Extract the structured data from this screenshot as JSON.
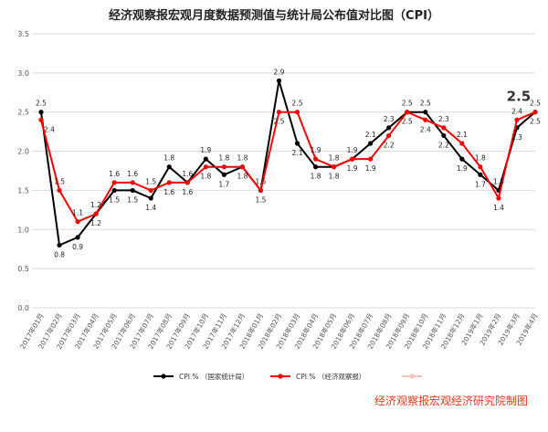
{
  "chart_data": {
    "type": "line",
    "title": "经济观察报宏观月度数据预测值与统计局公布值对比图（CPI）",
    "categories": [
      "2017年01月",
      "2017年02月",
      "2017年03月",
      "2017年04月",
      "2017年05月",
      "2017年06月",
      "2017年07月",
      "2017年08月",
      "2017年09月",
      "2017年10月",
      "2017年11月",
      "2017年12月",
      "2018年01月",
      "2018年02月",
      "2018年03月",
      "2018年04月",
      "2018年05月",
      "2018年06月",
      "2018年07月",
      "2018年08月",
      "2018年09月",
      "2018年10月",
      "2018年11月",
      "2018年12月",
      "2019年1月",
      "2019年2月",
      "2019年3月",
      "2019年4月"
    ],
    "series": [
      {
        "name": "CPI   %     （国家统计局）",
        "color": "#000000",
        "values": [
          2.5,
          0.8,
          0.9,
          1.2,
          1.5,
          1.5,
          1.4,
          1.8,
          1.6,
          1.9,
          1.7,
          1.8,
          1.5,
          2.9,
          2.1,
          1.8,
          1.8,
          1.9,
          2.1,
          2.3,
          2.5,
          2.5,
          2.2,
          1.9,
          1.7,
          1.5,
          2.3,
          2.5
        ]
      },
      {
        "name": "CPI   %          （经济观察报）",
        "color": "#ff0000",
        "values": [
          2.4,
          1.5,
          1.1,
          1.2,
          1.6,
          1.6,
          1.5,
          1.6,
          1.6,
          1.8,
          1.8,
          1.8,
          1.5,
          2.5,
          2.5,
          1.9,
          1.8,
          1.9,
          1.9,
          2.2,
          2.5,
          2.4,
          2.3,
          2.1,
          1.8,
          1.4,
          2.4,
          2.5
        ]
      }
    ],
    "ylim": [
      0,
      3.5
    ],
    "yticks": [
      "0.0",
      "0.5",
      "1.0",
      "1.5",
      "2.0",
      "2.5",
      "3.0",
      "3.5"
    ],
    "grid": true,
    "legend": "bottom",
    "highlight_label": "2.5"
  },
  "credit": "经济观察报宏观经济研究院制图"
}
